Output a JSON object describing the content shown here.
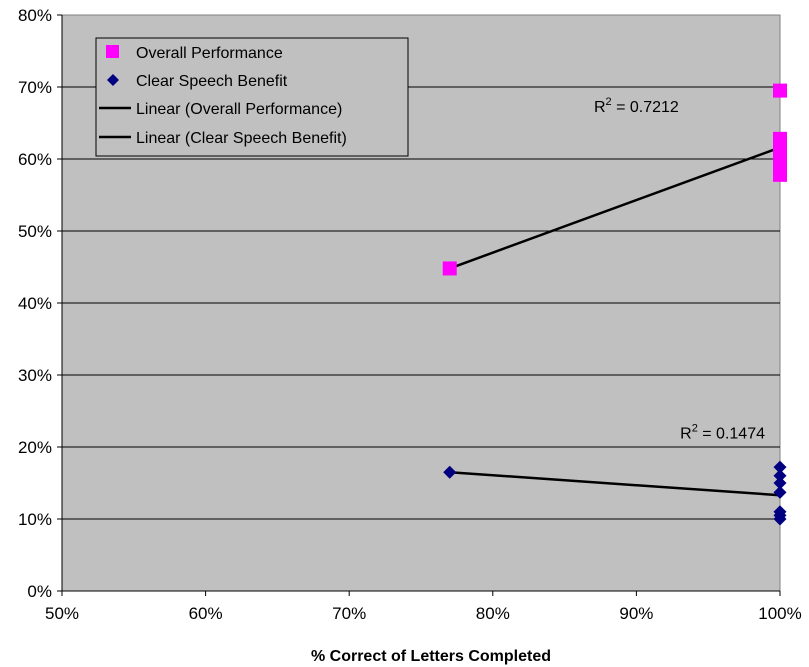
{
  "chart_data": {
    "type": "scatter",
    "xlabel": "% Correct of Letters Completed",
    "ylabel": "",
    "xlim": [
      0.5,
      1.0
    ],
    "ylim": [
      0,
      0.8
    ],
    "x_ticks": [
      "50%",
      "60%",
      "70%",
      "80%",
      "90%",
      "100%"
    ],
    "y_ticks": [
      "0%",
      "10%",
      "20%",
      "30%",
      "40%",
      "50%",
      "60%",
      "70%",
      "80%"
    ],
    "grid": "horizontal",
    "plot_background": "#c0c0c0",
    "legend_position": "top-left",
    "series": [
      {
        "name": "Overall Performance",
        "marker": "square",
        "color": "#ff00ff",
        "points": [
          {
            "x": 0.77,
            "y": 0.448
          },
          {
            "x": 1.0,
            "y": 0.695
          },
          {
            "x": 1.0,
            "y": 0.628
          },
          {
            "x": 1.0,
            "y": 0.618
          },
          {
            "x": 1.0,
            "y": 0.608
          },
          {
            "x": 1.0,
            "y": 0.598
          },
          {
            "x": 1.0,
            "y": 0.588
          },
          {
            "x": 1.0,
            "y": 0.578
          }
        ]
      },
      {
        "name": "Clear Speech Benefit",
        "marker": "diamond",
        "color": "#000080",
        "points": [
          {
            "x": 0.77,
            "y": 0.165
          },
          {
            "x": 1.0,
            "y": 0.172
          },
          {
            "x": 1.0,
            "y": 0.16
          },
          {
            "x": 1.0,
            "y": 0.15
          },
          {
            "x": 1.0,
            "y": 0.137
          },
          {
            "x": 1.0,
            "y": 0.11
          },
          {
            "x": 1.0,
            "y": 0.105
          },
          {
            "x": 1.0,
            "y": 0.1
          }
        ]
      }
    ],
    "trendlines": [
      {
        "name": "Linear (Overall Performance)",
        "color": "#000000",
        "x": [
          0.77,
          1.0
        ],
        "y": [
          0.448,
          0.616
        ]
      },
      {
        "name": "Linear (Clear Speech Benefit)",
        "color": "#000000",
        "x": [
          0.77,
          1.0
        ],
        "y": [
          0.165,
          0.133
        ]
      }
    ],
    "annotations": [
      {
        "id": "r2_overall",
        "prefix": "R",
        "sup": "2",
        "text": " = 0.7212",
        "anchor_x": 0.9,
        "anchor_y": 0.665
      },
      {
        "id": "r2_clear",
        "prefix": "R",
        "sup": "2",
        "text": " = 0.1474",
        "anchor_x": 0.96,
        "anchor_y": 0.212
      }
    ]
  }
}
